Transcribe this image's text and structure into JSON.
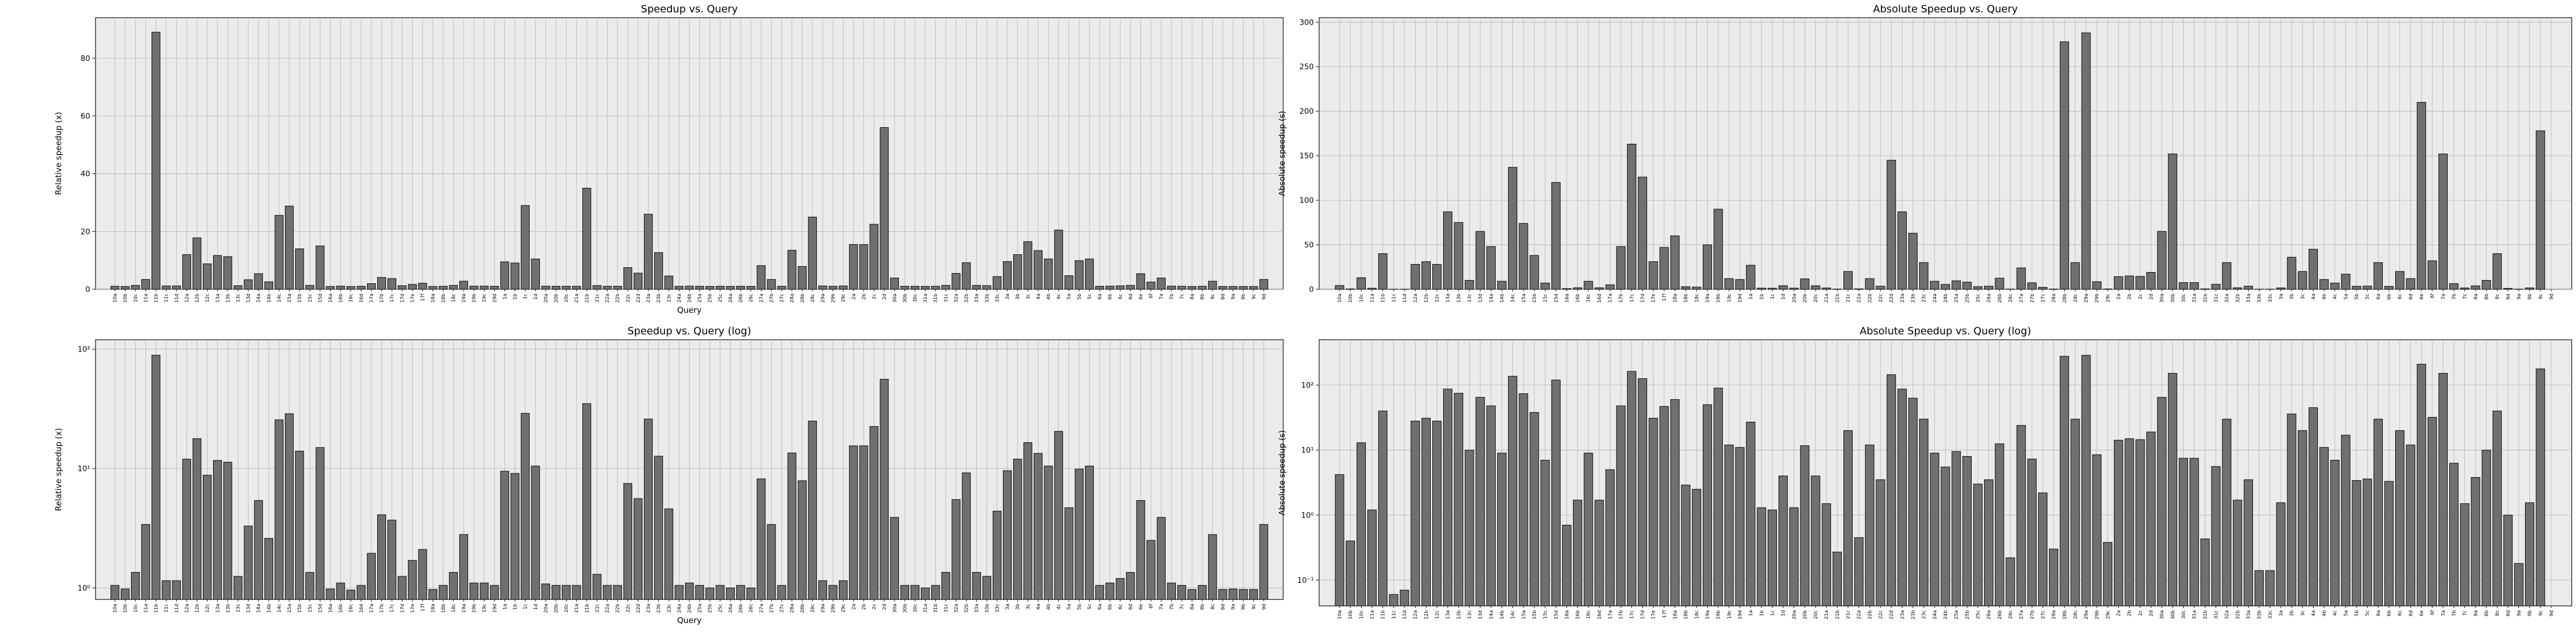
{
  "chart_data": [
    {
      "type": "bar",
      "title": "Speedup vs. Query",
      "xlabel": "Query",
      "ylabel": "Relative speedup (x)",
      "yscale": "linear",
      "ylim": [
        0,
        94
      ],
      "yticks": [
        0,
        20,
        40,
        60,
        80
      ],
      "grid": true,
      "bar_color": "#707070",
      "background": "#ebebeb",
      "series_key": "relative"
    },
    {
      "type": "bar",
      "title": "Absolute Speedup vs. Query",
      "xlabel": "",
      "ylabel": "Absolute speedup (s)",
      "yscale": "linear",
      "ylim": [
        0,
        305
      ],
      "yticks": [
        0,
        50,
        100,
        150,
        200,
        250,
        300
      ],
      "grid": true,
      "bar_color": "#707070",
      "background": "#ebebeb",
      "series_key": "absolute"
    },
    {
      "type": "bar",
      "title": "Speedup vs. Query (log)",
      "xlabel": "Query",
      "ylabel": "Relative speedup (x)",
      "yscale": "log",
      "ylim": [
        0.8,
        120
      ],
      "yticks": [
        1,
        10,
        100
      ],
      "ytick_labels": [
        "10⁰",
        "10¹",
        "10²"
      ],
      "grid": true,
      "bar_color": "#707070",
      "background": "#ebebeb",
      "series_key": "relative"
    },
    {
      "type": "bar",
      "title": "Absolute Speedup vs. Query (log)",
      "xlabel": "",
      "ylabel": "Absolute speedup (s)",
      "yscale": "log",
      "ylim": [
        0.04,
        500
      ],
      "yticks": [
        0.1,
        1,
        10,
        100
      ],
      "ytick_labels": [
        "10⁻¹",
        "10⁰",
        "10¹",
        "10²"
      ],
      "grid": true,
      "bar_color": "#707070",
      "background": "#ebebeb",
      "series_key": "absolute"
    }
  ],
  "categories": [
    "10a",
    "10b",
    "10c",
    "11a",
    "11b",
    "11c",
    "11d",
    "12a",
    "12b",
    "12c",
    "13a",
    "13b",
    "13c",
    "13d",
    "14a",
    "14b",
    "14c",
    "15a",
    "15b",
    "15c",
    "15d",
    "16a",
    "16b",
    "16c",
    "16d",
    "17a",
    "17b",
    "17c",
    "17d",
    "17e",
    "17f",
    "18a",
    "18b",
    "18c",
    "19a",
    "19b",
    "19c",
    "19d",
    "1a",
    "1b",
    "1c",
    "1d",
    "20a",
    "20b",
    "20c",
    "21a",
    "21b",
    "21c",
    "22a",
    "22b",
    "22c",
    "22d",
    "23a",
    "23b",
    "23c",
    "24a",
    "24b",
    "25a",
    "25b",
    "25c",
    "26a",
    "26b",
    "26c",
    "27a",
    "27b",
    "27c",
    "28a",
    "28b",
    "28c",
    "29a",
    "29b",
    "29c",
    "2a",
    "2b",
    "2c",
    "2d",
    "30a",
    "30b",
    "30c",
    "31a",
    "31b",
    "31c",
    "32a",
    "32b",
    "33a",
    "33b",
    "33c",
    "3a",
    "3b",
    "3c",
    "4a",
    "4b",
    "4c",
    "5a",
    "5b",
    "5c",
    "6a",
    "6b",
    "6c",
    "6d",
    "6e",
    "6f",
    "7a",
    "7b",
    "7c",
    "8a",
    "8b",
    "8c",
    "8d",
    "9a",
    "9b",
    "9c",
    "9d"
  ],
  "series": {
    "relative": [
      1.05,
      0.98,
      1.35,
      3.4,
      89,
      1.15,
      1.15,
      12,
      17.8,
      8.8,
      11.7,
      11.3,
      1.25,
      3.3,
      5.4,
      2.6,
      25.6,
      28.8,
      14,
      1.35,
      15,
      0.98,
      1.1,
      0.96,
      1.05,
      1.95,
      4.1,
      3.7,
      1.25,
      1.7,
      2.1,
      0.97,
      1.05,
      1.35,
      2.8,
      1.1,
      1.1,
      1.05,
      9.5,
      9.1,
      29,
      10.5,
      1.08,
      1.05,
      1.05,
      1.05,
      35,
      1.3,
      1.05,
      1.05,
      7.5,
      5.6,
      26,
      12.7,
      4.6,
      1.05,
      1.1,
      1.05,
      1.0,
      1.05,
      1.0,
      1.05,
      1.0,
      8.2,
      3.4,
      1.05,
      13.5,
      7.9,
      25,
      1.15,
      1.05,
      1.15,
      15.5,
      15.5,
      22.5,
      56,
      3.9,
      1.05,
      1.05,
      1.0,
      1.05,
      1.35,
      5.5,
      9.2,
      1.35,
      1.25,
      4.4,
      9.6,
      12,
      16.5,
      13.4,
      10.5,
      20.5,
      4.7,
      9.9,
      10.5,
      1.05,
      1.1,
      1.2,
      1.35,
      5.4,
      2.5,
      3.9,
      1.1,
      1.05,
      0.97,
      1.05,
      2.8,
      0.97,
      0.98,
      0.97,
      0.97,
      3.4
    ],
    "absolute": [
      4.2,
      0.4,
      13,
      1.2,
      40,
      0.06,
      0.07,
      28,
      31,
      28,
      87,
      75,
      10,
      65,
      48,
      9,
      137,
      74,
      38,
      7,
      120,
      0.7,
      1.7,
      9,
      1.7,
      5,
      48,
      163,
      126,
      31,
      47,
      60,
      2.9,
      2.5,
      50,
      90,
      12,
      11,
      27,
      1.3,
      1.2,
      4,
      1.3,
      11.7,
      4,
      1.5,
      0.27,
      20,
      0.45,
      12,
      3.5,
      145,
      87,
      63,
      30,
      9,
      5.5,
      9.5,
      8,
      3,
      3.5,
      12.5,
      0.22,
      24,
      7.3,
      2.2,
      0.3,
      278,
      30,
      288,
      8.5,
      0.38,
      14.2,
      15,
      14.5,
      19,
      65,
      152,
      7.5,
      7.5,
      0.43,
      5.6,
      30,
      1.7,
      3.5,
      0.14,
      0.14,
      1.55,
      36,
      20,
      45,
      11,
      7,
      17,
      3.4,
      3.6,
      30,
      3.3,
      20,
      12,
      210,
      32,
      152,
      6.3,
      1.5,
      3.8,
      10,
      40,
      1.0,
      0.18,
      1.55,
      178
    ]
  }
}
